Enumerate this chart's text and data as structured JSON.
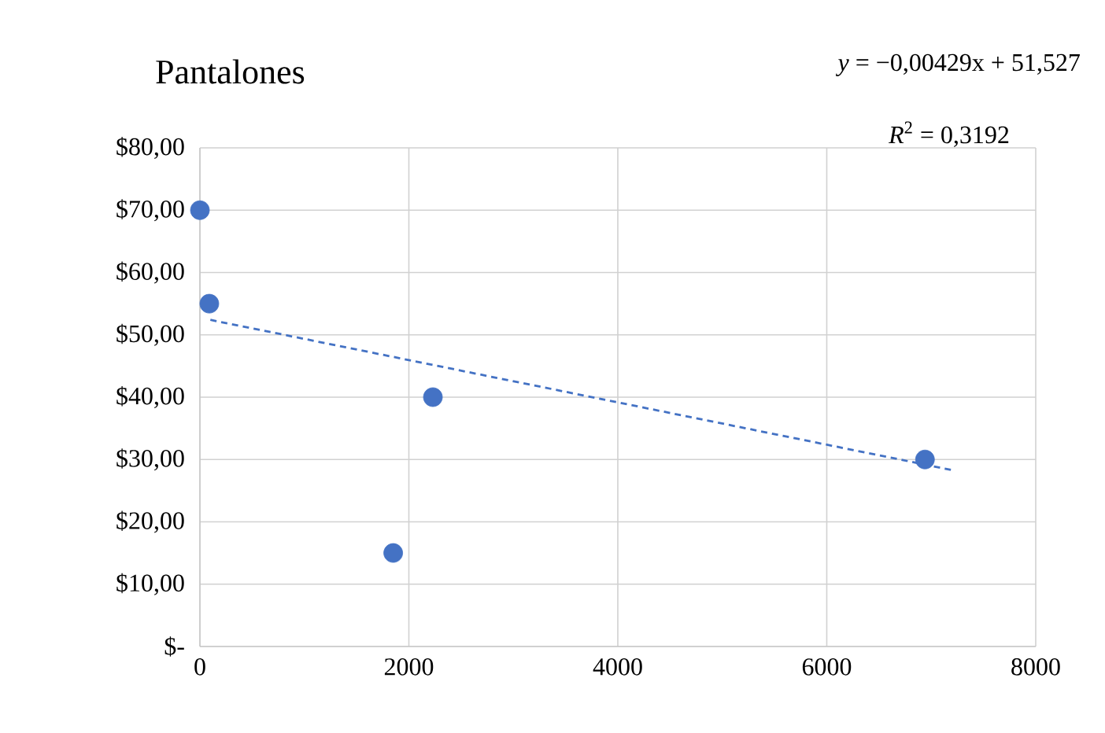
{
  "chart_data": {
    "type": "scatter",
    "title": "Pantalones",
    "annotations": [
      "*y* =  −0,00429x + 51,527",
      "*R*$^{2}$ = 0,3192"
    ],
    "series": [
      {
        "color": "#4472c4",
        "marker": "circle",
        "x": [
          0,
          90,
          1850,
          2230,
          6940
        ],
        "values": [
          70,
          55,
          15,
          40,
          30
        ]
      },
      {
        "type": "line",
        "color": "#4472c4",
        "marker": "none",
        "line_style": "dashed",
        "x": [
          100,
          7200
        ],
        "values": [
          52.4,
          28.3
        ]
      }
    ],
    "xlim": [
      0,
      8000
    ],
    "xticks": [
      0,
      2000,
      4000,
      6000,
      8000
    ],
    "ylim": [
      0,
      80
    ],
    "yticks": [
      {
        "value": 0,
        "label": "$-"
      },
      {
        "value": 10,
        "label": "$10,00"
      },
      {
        "value": 20,
        "label": "$20,00"
      },
      {
        "value": 30,
        "label": "$30,00"
      },
      {
        "value": 40,
        "label": "$40,00"
      },
      {
        "value": 50,
        "label": "$50,00"
      },
      {
        "value": 60,
        "label": "$60,00"
      },
      {
        "value": 70,
        "label": "$70,00"
      },
      {
        "value": 80,
        "label": "$80,00"
      }
    ],
    "grid": true
  }
}
